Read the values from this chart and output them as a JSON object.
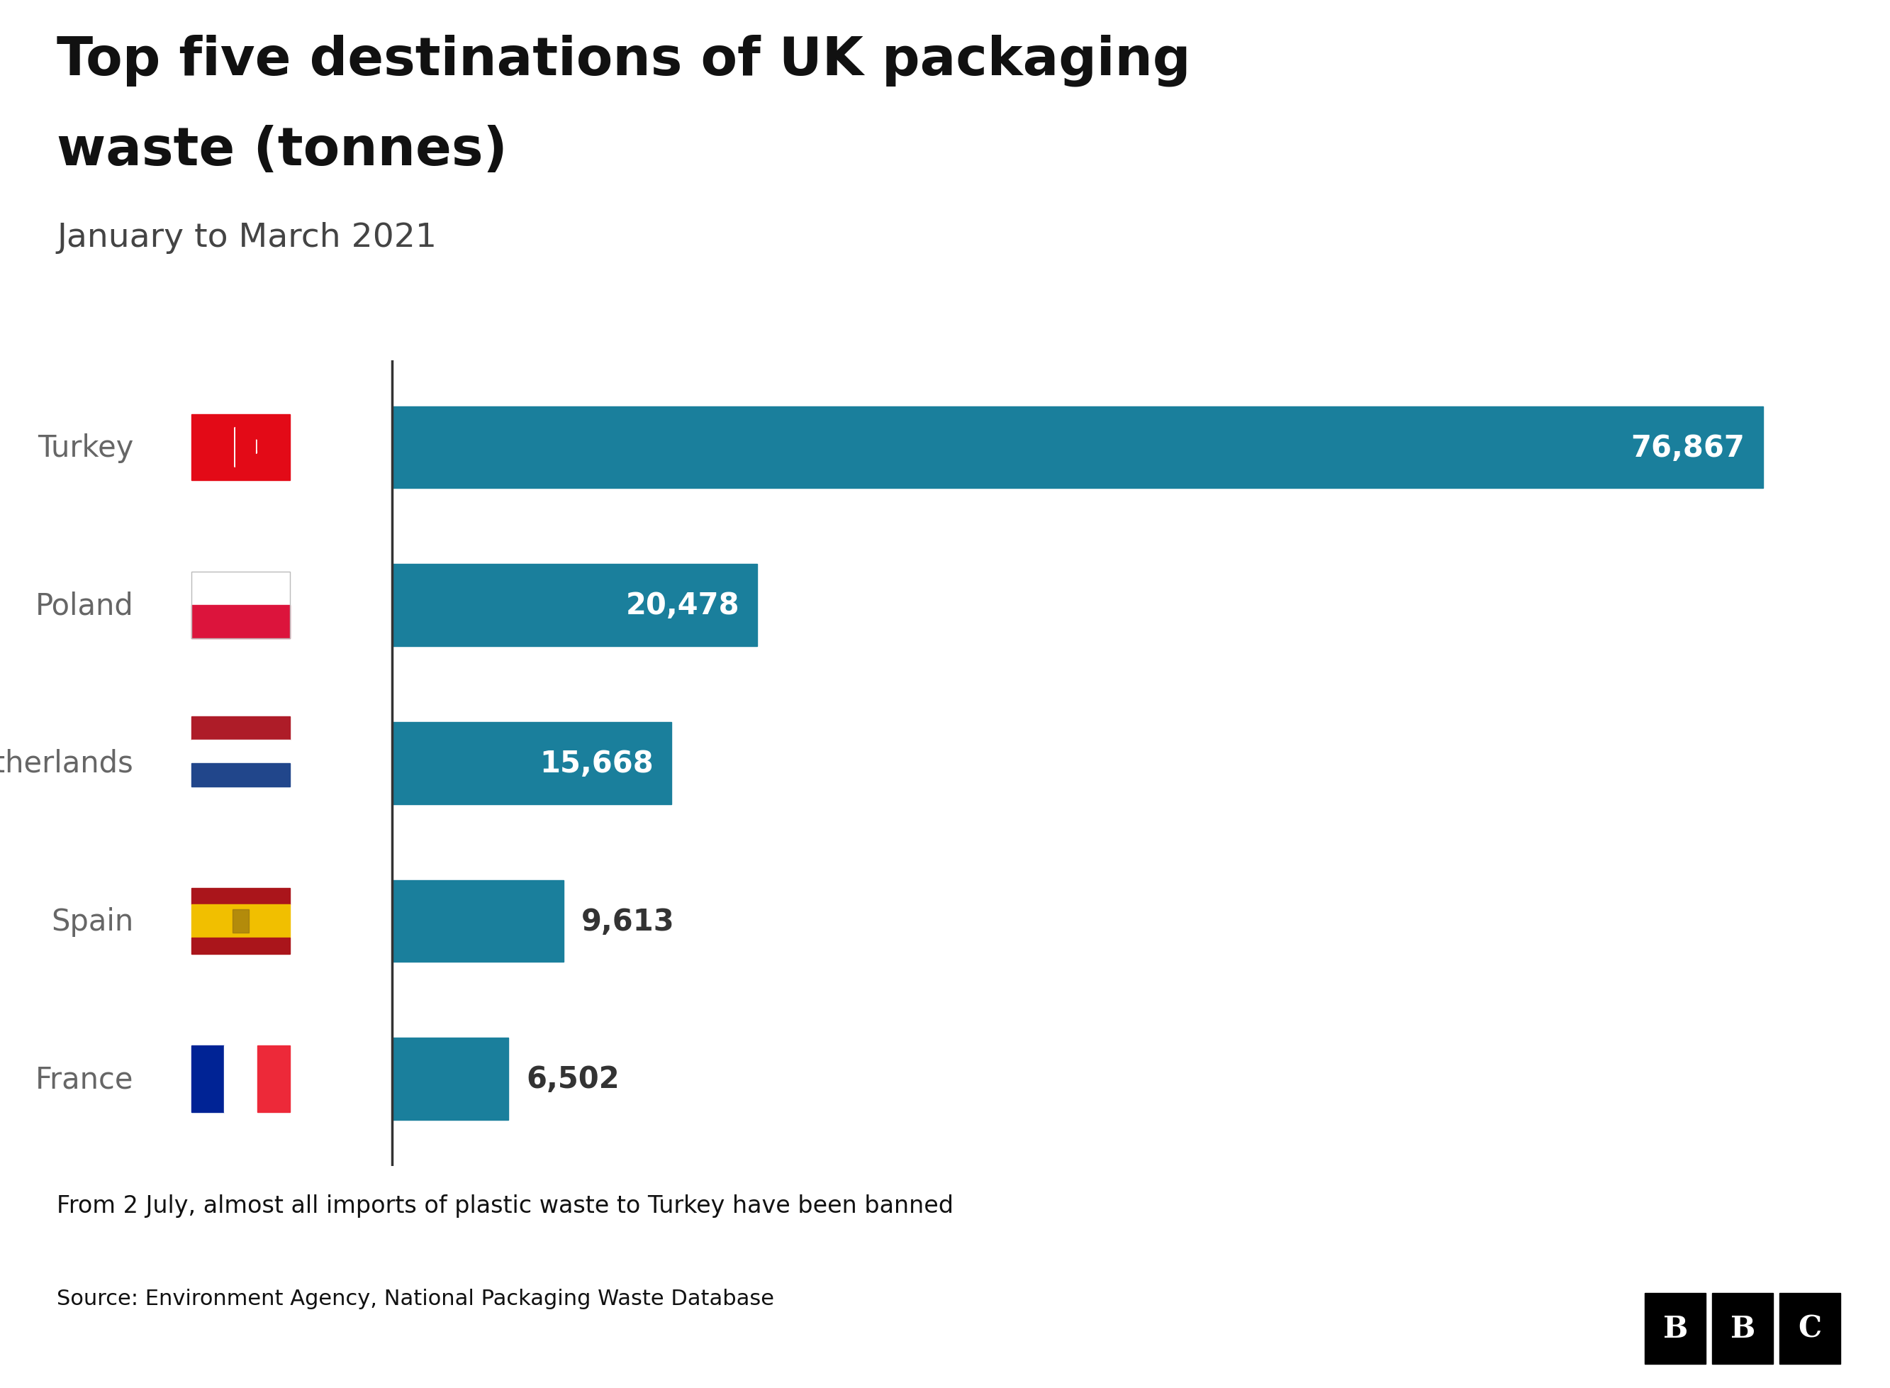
{
  "title_line1": "Top five destinations of UK packaging",
  "title_line2": "waste (tonnes)",
  "subtitle": "January to March 2021",
  "categories": [
    "Turkey",
    "Poland",
    "Netherlands",
    "Spain",
    "France"
  ],
  "values": [
    76867,
    20478,
    15668,
    9613,
    6502
  ],
  "value_labels": [
    "76,867",
    "20,478",
    "15,668",
    "9,613",
    "6,502"
  ],
  "bar_color": "#1a7f9c",
  "label_color_inside": "#ffffff",
  "label_color_outside": "#333333",
  "inside_threshold": 12000,
  "bg_color": "#ffffff",
  "title_color": "#111111",
  "subtitle_color": "#444444",
  "category_color": "#666666",
  "footnote": "From 2 July, almost all imports of plastic waste to Turkey have been banned",
  "source": "Source: Environment Agency, National Packaging Waste Database",
  "xlim_left": -22000,
  "xlim_right": 84000,
  "bar_height": 0.52
}
